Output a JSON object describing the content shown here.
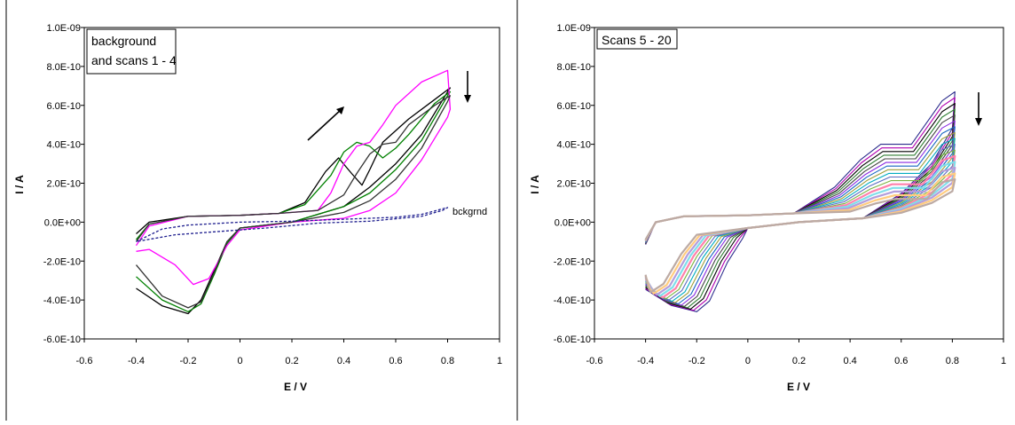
{
  "chart_data": [
    {
      "type": "line",
      "annotation": [
        "background",
        "and scans 1 - 4"
      ],
      "xlabel": "E / V",
      "ylabel": "I / A",
      "xlim": [
        -0.6,
        1
      ],
      "ylim": [
        -6e-10,
        1e-09
      ],
      "xticks": [
        "-0.6",
        "-0.4",
        "-0.2",
        "0",
        "0.2",
        "0.4",
        "0.6",
        "0.8",
        "1"
      ],
      "yticks": [
        "1.0E-09",
        "8.0E-10",
        "6.0E-10",
        "4.0E-10",
        "2.0E-10",
        "0.0E+00",
        "-2.0E-10",
        "-4.0E-10",
        "-6.0E-10"
      ],
      "curve_label": "bckgrnd",
      "series": [
        {
          "color": "#000000",
          "dashed": false,
          "points": [
            [
              -0.4,
              -3.4e-10
            ],
            [
              -0.3,
              -4.3e-10
            ],
            [
              -0.2,
              -4.7e-10
            ],
            [
              -0.15,
              -4e-10
            ],
            [
              -0.1,
              -2.5e-10
            ],
            [
              -0.05,
              -1e-10
            ],
            [
              0,
              -3e-11
            ],
            [
              0.2,
              0
            ],
            [
              0.4,
              8e-11
            ],
            [
              0.5,
              1.8e-10
            ],
            [
              0.6,
              3e-10
            ],
            [
              0.7,
              4.5e-10
            ],
            [
              0.8,
              6.7e-10
            ],
            [
              0.81,
              6.9e-10
            ],
            [
              0.75,
              6.3e-10
            ],
            [
              0.65,
              5.3e-10
            ],
            [
              0.55,
              4.1e-10
            ],
            [
              0.5,
              2.7e-10
            ],
            [
              0.47,
              1.9e-10
            ],
            [
              0.43,
              2.5e-10
            ],
            [
              0.38,
              3.3e-10
            ],
            [
              0.33,
              2.6e-10
            ],
            [
              0.25,
              1e-10
            ],
            [
              0.15,
              4.5e-11
            ],
            [
              0,
              3.5e-11
            ],
            [
              -0.2,
              3e-11
            ],
            [
              -0.35,
              0
            ],
            [
              -0.4,
              -6e-11
            ]
          ]
        },
        {
          "color": "#008000",
          "dashed": false,
          "points": [
            [
              -0.4,
              -2.8e-10
            ],
            [
              -0.3,
              -4e-10
            ],
            [
              -0.2,
              -4.6e-10
            ],
            [
              -0.15,
              -4.2e-10
            ],
            [
              -0.1,
              -2.7e-10
            ],
            [
              -0.05,
              -1.1e-10
            ],
            [
              0,
              -3e-11
            ],
            [
              0.2,
              0
            ],
            [
              0.4,
              8e-11
            ],
            [
              0.5,
              1.5e-10
            ],
            [
              0.6,
              2.7e-10
            ],
            [
              0.7,
              4.2e-10
            ],
            [
              0.8,
              6.5e-10
            ],
            [
              0.81,
              6.7e-10
            ],
            [
              0.75,
              6.1e-10
            ],
            [
              0.65,
              4.5e-10
            ],
            [
              0.6,
              3.8e-10
            ],
            [
              0.55,
              3.3e-10
            ],
            [
              0.5,
              3.9e-10
            ],
            [
              0.45,
              4.1e-10
            ],
            [
              0.4,
              3.6e-10
            ],
            [
              0.35,
              2.4e-10
            ],
            [
              0.25,
              9e-11
            ],
            [
              0.15,
              4.5e-11
            ],
            [
              0,
              3.5e-11
            ],
            [
              -0.2,
              3e-11
            ],
            [
              -0.35,
              -1e-11
            ],
            [
              -0.4,
              -9e-11
            ]
          ]
        },
        {
          "color": "#ff00ff",
          "dashed": false,
          "points": [
            [
              -0.4,
              -1.5e-10
            ],
            [
              -0.35,
              -1.4e-10
            ],
            [
              -0.25,
              -2.2e-10
            ],
            [
              -0.18,
              -3.2e-10
            ],
            [
              -0.12,
              -2.9e-10
            ],
            [
              -0.05,
              -1.2e-10
            ],
            [
              0,
              -4e-11
            ],
            [
              0.2,
              0
            ],
            [
              0.4,
              2e-11
            ],
            [
              0.5,
              6e-11
            ],
            [
              0.6,
              1.5e-10
            ],
            [
              0.7,
              3.2e-10
            ],
            [
              0.8,
              5.4e-10
            ],
            [
              0.81,
              5.8e-10
            ],
            [
              0.8,
              7.8e-10
            ],
            [
              0.7,
              7.2e-10
            ],
            [
              0.6,
              6e-10
            ],
            [
              0.55,
              5e-10
            ],
            [
              0.5,
              4.1e-10
            ],
            [
              0.45,
              3.9e-10
            ],
            [
              0.4,
              3e-10
            ],
            [
              0.35,
              1.5e-10
            ],
            [
              0.3,
              6e-11
            ],
            [
              0.15,
              4.5e-11
            ],
            [
              0,
              3.5e-11
            ],
            [
              -0.2,
              3e-11
            ],
            [
              -0.35,
              -2e-11
            ],
            [
              -0.4,
              -1.2e-10
            ]
          ]
        },
        {
          "color": "#333333",
          "dashed": false,
          "points": [
            [
              -0.4,
              -2.2e-10
            ],
            [
              -0.3,
              -3.8e-10
            ],
            [
              -0.2,
              -4.4e-10
            ],
            [
              -0.15,
              -4.1e-10
            ],
            [
              -0.1,
              -2.6e-10
            ],
            [
              -0.05,
              -1e-10
            ],
            [
              0,
              -3e-11
            ],
            [
              0.2,
              0
            ],
            [
              0.4,
              5e-11
            ],
            [
              0.5,
              1.1e-10
            ],
            [
              0.6,
              2.2e-10
            ],
            [
              0.7,
              3.8e-10
            ],
            [
              0.8,
              6.2e-10
            ],
            [
              0.81,
              6.5e-10
            ],
            [
              0.75,
              6e-10
            ],
            [
              0.65,
              5e-10
            ],
            [
              0.6,
              4.1e-10
            ],
            [
              0.55,
              4e-10
            ],
            [
              0.5,
              3.5e-10
            ],
            [
              0.45,
              2.5e-10
            ],
            [
              0.4,
              1.4e-10
            ],
            [
              0.3,
              6e-11
            ],
            [
              0.15,
              4.5e-11
            ],
            [
              0,
              3.5e-11
            ],
            [
              -0.2,
              3e-11
            ],
            [
              -0.35,
              -1e-11
            ],
            [
              -0.4,
              -1e-10
            ]
          ]
        },
        {
          "name": "bckgrnd",
          "color": "#1f1f8f",
          "dashed": true,
          "points": [
            [
              -0.4,
              -1e-10
            ],
            [
              -0.3,
              -3.5e-11
            ],
            [
              -0.2,
              -1.5e-11
            ],
            [
              0,
              0
            ],
            [
              0.2,
              5e-12
            ],
            [
              0.4,
              1.5e-11
            ],
            [
              0.6,
              2.5e-11
            ],
            [
              0.7,
              4e-11
            ],
            [
              0.8,
              7.5e-11
            ],
            [
              0.78,
              6e-11
            ],
            [
              0.7,
              3e-11
            ],
            [
              0.5,
              5e-12
            ],
            [
              0.3,
              -5e-12
            ],
            [
              0.1,
              -3e-11
            ],
            [
              -0.1,
              -5e-11
            ],
            [
              -0.25,
              -6.5e-11
            ],
            [
              -0.4,
              -1e-10
            ]
          ]
        }
      ]
    },
    {
      "type": "line",
      "annotation": [
        "Scans 5 - 20"
      ],
      "xlabel": "E / V",
      "ylabel": "I / A",
      "xlim": [
        -0.6,
        1
      ],
      "ylim": [
        -6e-10,
        1e-09
      ],
      "xticks": [
        "-0.6",
        "-0.4",
        "-0.2",
        "0",
        "0.2",
        "0.4",
        "0.6",
        "0.8",
        "1"
      ],
      "yticks": [
        "1.0E-09",
        "8.0E-10",
        "6.0E-10",
        "4.0E-10",
        "2.0E-10",
        "0.0E+00",
        "-2.0E-10",
        "-4.0E-10",
        "-6.0E-10"
      ],
      "family": {
        "count": 16,
        "anodic_peak_e": [
          0.52,
          0.58
        ],
        "anodic_peak_i": [
          4e-10,
          1.2e-10
        ],
        "switch_i": [
          6.7e-10,
          2.2e-10
        ],
        "cathodic_peak_e": [
          -0.2,
          -0.38
        ],
        "cathodic_peak_i": [
          -4.6e-10,
          -3.6e-10
        ],
        "colors": [
          "#2b2b8c",
          "#b000b0",
          "#000000",
          "#2e7d32",
          "#444444",
          "#8a2be2",
          "#1565c0",
          "#9e9e3a",
          "#00acc1",
          "#5c6bc0",
          "#7cb342",
          "#ff80ab",
          "#80deea",
          "#b39ddb",
          "#ffcc80",
          "#bcaaa4"
        ]
      }
    }
  ]
}
